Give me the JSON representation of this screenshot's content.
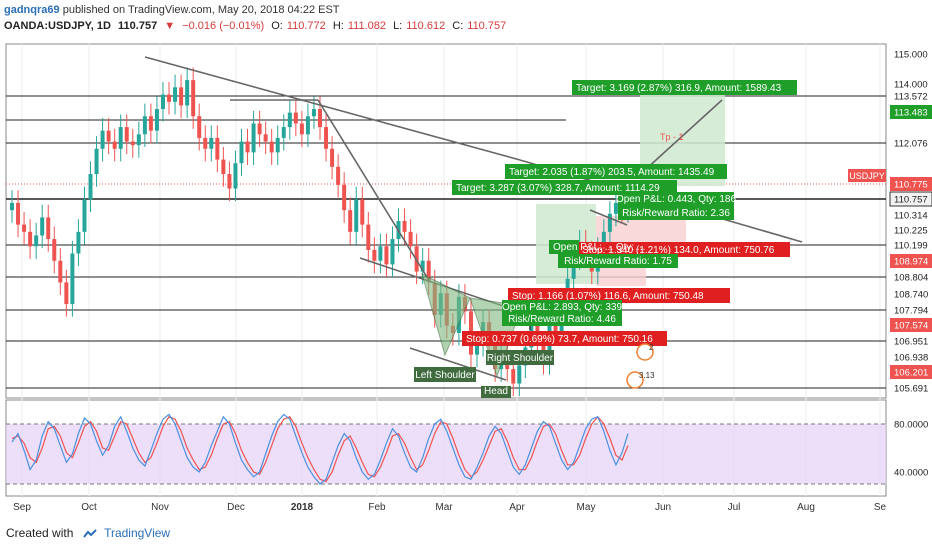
{
  "header": {
    "author": "gadnqra69",
    "published": "published on TradingView.com, May 20, 2018 04:22 EST",
    "symbol": "OANDA:USDJPY, 1D",
    "last": "110.757",
    "change": "−0.016 (−0.01%)",
    "o_label": "O:",
    "o": "110.772",
    "h_label": "H:",
    "h": "111.082",
    "l_label": "L:",
    "l": "110.612",
    "c_label": "C:",
    "c": "110.757"
  },
  "footer": {
    "created_with": "Created with",
    "brand": "TradingView"
  },
  "colors": {
    "up": "#26a69a",
    "down": "#ef5350",
    "target_box": "#1f9e2a",
    "stop_box": "#e02020",
    "rsi_fill": "#e6d2f7",
    "line_red": "#ef5350",
    "line_blue": "#4a90e2"
  },
  "chart_data": {
    "type": "candlestick",
    "symbol_tag": "USDJPY",
    "x_ticks": [
      "Sep",
      "Oct",
      "Nov",
      "Dec",
      "2018",
      "Feb",
      "Mar",
      "Apr",
      "May",
      "Jun",
      "Jul",
      "Aug",
      "Se"
    ],
    "y_ticks": [
      "115.000",
      "114.000",
      "113.572",
      "113.483",
      "112.076",
      "110.775",
      "110.757",
      "110.314",
      "110.225",
      "110.199",
      "108.974",
      "108.804",
      "108.740",
      "107.794",
      "107.574",
      "106.951",
      "106.938",
      "106.201",
      "105.691"
    ],
    "red_ticks": [
      "110.775",
      "108.974",
      "107.574",
      "106.201"
    ],
    "price_ylim": [
      105.4,
      115.2
    ],
    "close_series": [
      110.8,
      110.2,
      110.0,
      109.6,
      109.9,
      110.4,
      109.8,
      109.2,
      108.6,
      108.0,
      109.4,
      110.0,
      110.9,
      111.6,
      112.3,
      112.8,
      112.5,
      112.3,
      112.9,
      112.5,
      112.4,
      112.7,
      113.2,
      112.8,
      113.4,
      113.8,
      113.6,
      114.0,
      113.5,
      114.2,
      113.2,
      112.6,
      112.3,
      112.6,
      112.0,
      111.6,
      111.2,
      111.9,
      112.5,
      112.2,
      113.0,
      112.7,
      112.5,
      112.2,
      112.6,
      112.9,
      113.3,
      113.0,
      112.7,
      113.2,
      113.4,
      112.9,
      112.3,
      111.8,
      111.3,
      110.6,
      110.0,
      110.9,
      110.2,
      109.5,
      109.2,
      109.6,
      109.1,
      109.8,
      110.3,
      110.0,
      109.6,
      108.9,
      109.2,
      108.6,
      107.7,
      108.3,
      107.4,
      107.2,
      108.2,
      107.8,
      106.6,
      106.9,
      107.5,
      106.9,
      106.2,
      106.6,
      106.2,
      105.8,
      106.3,
      106.8,
      107.4,
      106.9,
      106.4,
      107.6,
      107.2,
      108.1,
      108.7,
      109.3,
      109.7,
      109.4,
      108.9,
      109.5,
      110.0,
      110.5,
      110.8,
      110.6,
      110.8
    ],
    "rsi_ylim": [
      20,
      100
    ],
    "rsi_ticks": [
      "80.0000",
      "40.0000"
    ],
    "rsi_k": [
      65,
      72,
      58,
      42,
      50,
      70,
      82,
      76,
      62,
      48,
      55,
      72,
      85,
      80,
      66,
      54,
      62,
      78,
      86,
      74,
      60,
      50,
      45,
      58,
      72,
      84,
      88,
      80,
      66,
      52,
      44,
      40,
      48,
      62,
      74,
      86,
      80,
      64,
      50,
      42,
      36,
      40,
      55,
      70,
      82,
      88,
      84,
      70,
      56,
      44,
      36,
      30,
      34,
      48,
      62,
      72,
      66,
      52,
      40,
      34,
      38,
      50,
      64,
      76,
      70,
      56,
      44,
      40,
      52,
      68,
      80,
      84,
      74,
      60,
      46,
      36,
      34,
      44,
      56,
      70,
      78,
      72,
      58,
      44,
      38,
      46,
      60,
      74,
      82,
      78,
      64,
      50,
      42,
      48,
      62,
      76,
      84,
      86,
      74,
      58,
      46,
      56,
      72
    ],
    "rsi_d": [
      68,
      70,
      64,
      52,
      48,
      60,
      76,
      78,
      70,
      56,
      52,
      64,
      78,
      82,
      74,
      60,
      58,
      70,
      82,
      80,
      68,
      56,
      48,
      52,
      64,
      78,
      86,
      84,
      74,
      60,
      50,
      42,
      44,
      54,
      68,
      80,
      82,
      72,
      58,
      48,
      40,
      38,
      48,
      62,
      76,
      84,
      86,
      78,
      64,
      52,
      42,
      34,
      32,
      40,
      54,
      66,
      70,
      60,
      48,
      38,
      36,
      44,
      56,
      70,
      72,
      64,
      52,
      42,
      46,
      58,
      72,
      82,
      80,
      68,
      54,
      42,
      36,
      40,
      50,
      62,
      74,
      76,
      66,
      52,
      42,
      42,
      52,
      66,
      78,
      80,
      72,
      58,
      46,
      46,
      54,
      68,
      80,
      86,
      80,
      68,
      54,
      50,
      62
    ],
    "annotations": {
      "left_shoulder": "Left Shoulder",
      "right_shoulder": "Right Shoulder",
      "head": "Head",
      "tp": "Tp - 1",
      "target1": "Target: 3.169 (2.87%) 316.9, Amount: 1589.43",
      "target2": "Target: 2.035 (1.87%) 203.5, Amount: 1435.49",
      "target3": "Target: 3.287 (3.07%) 328.7, Amount: 1114.29",
      "openpl1": "Open P&L: 0.443, Qty: 186",
      "rr1": "Risk/Reward Ratio: 2.36",
      "stop1": "Stop: 1.340 (1.21%) 134.0, Amount: 750.76",
      "openpl2": "Open P&L: ... Qty: ...",
      "rr2": "Risk/Reward Ratio: 1.75",
      "stop2": "Stop: 1.166 (1.07%) 116.6, Amount: 750.48",
      "openpl3": "Open P&L: 2.893, Qty: 339",
      "rr3": "Risk/Reward Ratio: 4.46",
      "stop3": "Stop: 0.737 (0.69%) 73.7, Amount: 750.16",
      "icon1": "2",
      "icon2": "3.13"
    }
  }
}
